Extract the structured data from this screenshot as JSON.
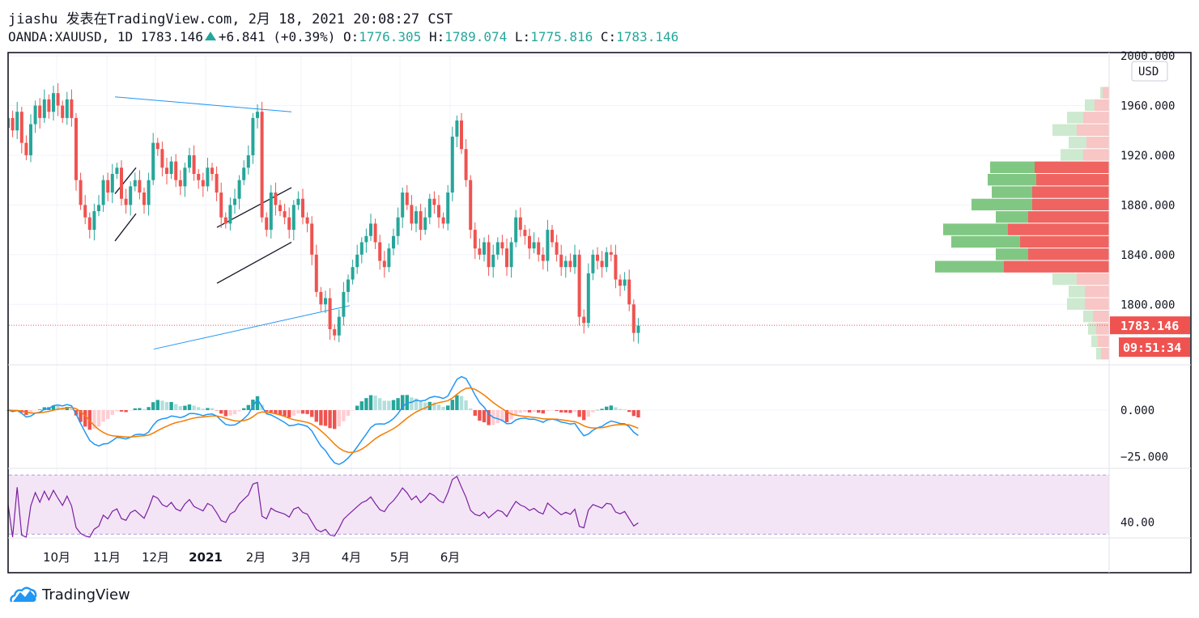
{
  "header": {
    "author": "jiashu",
    "published_label": "发表在TradingView.com,",
    "datetime": "2月 18, 2021 20:08:27 CST",
    "symbol": "OANDA:XAUUSD,",
    "interval": "1D",
    "last": "1783.146",
    "change": "+6.841 (+0.39%)",
    "open_label": "O:",
    "open": "1776.305",
    "high_label": "H:",
    "high": "1789.074",
    "low_label": "L:",
    "low": "1775.816",
    "close_label": "C:",
    "close": "1783.146"
  },
  "colors": {
    "up": "#26a69a",
    "down": "#ef5350",
    "line": "#2196f3",
    "signal": "#f57c00",
    "rsi": "#7b1fa2",
    "rsi_band": "#f3e5f5",
    "vp_up": "#81c784",
    "vp_down": "#ef6461"
  },
  "brand": {
    "name": "TradingView",
    "icon": "tradingview-cloud-icon"
  },
  "chart_data": {
    "type": "candlestick",
    "currency": "USD",
    "price_axis": {
      "ticks": [
        "2000.000",
        "1960.000",
        "1920.000",
        "1880.000",
        "1840.000",
        "1800.000"
      ],
      "tick_values": [
        2000,
        1960,
        1920,
        1880,
        1840,
        1800
      ],
      "ylim": [
        1752,
        2002
      ]
    },
    "last_price_label": "1783.146",
    "countdown_label": "09:51:34",
    "x_axis_labels": [
      "10月",
      "11月",
      "12月",
      "2021",
      "2月",
      "3月",
      "4月",
      "5月",
      "6月"
    ],
    "x_axis_dates": [
      "2020-10-01",
      "2020-11-01",
      "2020-12-01",
      "2021-01-01",
      "2021-02-01",
      "2021-03-01",
      "2021-04-01",
      "2021-05-01",
      "2021-06-01"
    ],
    "candle_closes": [
      1950,
      1940,
      1955,
      1930,
      1920,
      1945,
      1960,
      1950,
      1965,
      1955,
      1970,
      1960,
      1950,
      1965,
      1950,
      1900,
      1880,
      1870,
      1860,
      1875,
      1880,
      1900,
      1890,
      1905,
      1910,
      1885,
      1880,
      1895,
      1900,
      1890,
      1880,
      1900,
      1930,
      1925,
      1910,
      1905,
      1915,
      1900,
      1895,
      1910,
      1920,
      1905,
      1900,
      1895,
      1910,
      1905,
      1890,
      1870,
      1865,
      1880,
      1885,
      1900,
      1910,
      1920,
      1950,
      1955,
      1870,
      1860,
      1890,
      1880,
      1875,
      1870,
      1860,
      1880,
      1885,
      1870,
      1865,
      1840,
      1810,
      1800,
      1805,
      1780,
      1775,
      1790,
      1810,
      1820,
      1830,
      1840,
      1850,
      1855,
      1865,
      1850,
      1835,
      1830,
      1845,
      1855,
      1870,
      1890,
      1880,
      1865,
      1875,
      1860,
      1870,
      1885,
      1880,
      1870,
      1865,
      1890,
      1935,
      1948,
      1925,
      1900,
      1860,
      1845,
      1840,
      1850,
      1830,
      1840,
      1850,
      1845,
      1830,
      1850,
      1870,
      1860,
      1855,
      1845,
      1850,
      1840,
      1835,
      1860,
      1850,
      1840,
      1830,
      1835,
      1830,
      1840,
      1790,
      1785,
      1825,
      1840,
      1835,
      1830,
      1842,
      1840,
      1820,
      1815,
      1820,
      1800,
      1777,
      1783
    ],
    "trendlines": [
      {
        "name": "upper-wedge",
        "from": [
          "2020-11-06",
          1967
        ],
        "to": [
          "2021-02-23",
          1955
        ]
      },
      {
        "name": "lower-support",
        "from": [
          "2020-11-30",
          1764
        ],
        "to": [
          "2021-03-31",
          1799
        ]
      },
      {
        "name": "flag-nov-upper",
        "from": [
          "2020-11-06",
          1889
        ],
        "to": [
          "2020-11-19",
          1910
        ]
      },
      {
        "name": "flag-nov-lower",
        "from": [
          "2020-11-06",
          1851
        ],
        "to": [
          "2020-11-19",
          1873
        ]
      },
      {
        "name": "channel-upper",
        "from": [
          "2021-01-08",
          1862
        ],
        "to": [
          "2021-02-23",
          1894
        ]
      },
      {
        "name": "channel-lower",
        "from": [
          "2021-01-08",
          1817
        ],
        "to": [
          "2021-02-23",
          1850
        ]
      }
    ],
    "volume_profile": [
      {
        "price": 1970,
        "up": 3,
        "down": 8
      },
      {
        "price": 1960,
        "up": 12,
        "down": 18
      },
      {
        "price": 1950,
        "up": 20,
        "down": 32
      },
      {
        "price": 1940,
        "up": 30,
        "down": 40
      },
      {
        "price": 1930,
        "up": 22,
        "down": 28
      },
      {
        "price": 1920,
        "up": 28,
        "down": 32
      },
      {
        "price": 1910,
        "up": 55,
        "down": 92
      },
      {
        "price": 1900,
        "up": 60,
        "down": 90
      },
      {
        "price": 1890,
        "up": 50,
        "down": 95
      },
      {
        "price": 1880,
        "up": 75,
        "down": 95
      },
      {
        "price": 1870,
        "up": 40,
        "down": 100
      },
      {
        "price": 1860,
        "up": 80,
        "down": 125
      },
      {
        "price": 1850,
        "up": 85,
        "down": 110
      },
      {
        "price": 1840,
        "up": 40,
        "down": 100
      },
      {
        "price": 1830,
        "up": 85,
        "down": 130
      },
      {
        "price": 1820,
        "up": 30,
        "down": 40
      },
      {
        "price": 1810,
        "up": 20,
        "down": 30
      },
      {
        "price": 1800,
        "up": 22,
        "down": 30
      },
      {
        "price": 1790,
        "up": 12,
        "down": 20
      },
      {
        "price": 1780,
        "up": 10,
        "down": 16
      },
      {
        "price": 1770,
        "up": 8,
        "down": 14
      },
      {
        "price": 1760,
        "up": 6,
        "down": 10
      }
    ],
    "macd": {
      "ticks": [
        "0.000",
        "−25.000"
      ],
      "tick_values": [
        0,
        -25
      ],
      "ylim": [
        -31,
        24
      ]
    },
    "rsi": {
      "ticks": [
        "40.00"
      ],
      "band": [
        30,
        70
      ],
      "ylim": [
        28,
        74
      ]
    }
  }
}
